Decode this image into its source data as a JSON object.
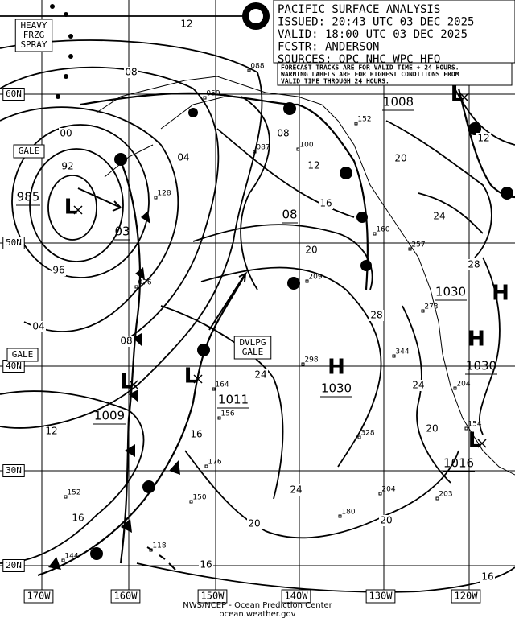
{
  "header": {
    "lines": [
      "PACIFIC SURFACE ANALYSIS",
      "ISSUED: 20:43 UTC 03 DEC 2025",
      "VALID:  18:00 UTC 03 DEC 2025",
      "FCSTR:  ANDERSON",
      "SOURCES: OPC NHC WPC HFO"
    ]
  },
  "note": {
    "lines": [
      "FORECAST TRACKS ARE FOR VALID TIME + 24 HOURS.",
      "WARNING LABELS ARE FOR HIGHEST CONDITIONS FROM",
      "VALID TIME THROUGH 24 HOURS."
    ]
  },
  "lat_labels": [
    "60N",
    "50N",
    "40N",
    "30N",
    "20N"
  ],
  "lon_labels": [
    "170W",
    "160W",
    "150W",
    "140W",
    "130W",
    "120W"
  ],
  "warnings": [
    [
      "HEAVY",
      "FRZG",
      "SPRAY"
    ],
    [
      "GALE"
    ],
    [
      "GALE"
    ],
    [
      "DVLPG",
      "GALE"
    ]
  ],
  "symbols": [
    "L",
    "L",
    "L",
    "L",
    "H",
    "H",
    "H",
    "L"
  ],
  "pressures": [
    "985",
    "03",
    "1009",
    "1011",
    "1030",
    "1030",
    "1030",
    "1008",
    "1016",
    "08"
  ],
  "contour_labels": [
    "12",
    "08",
    "00",
    "92",
    "04",
    "96",
    "04",
    "08",
    "12",
    "16",
    "16",
    "20",
    "24",
    "24",
    "20",
    "16",
    "12",
    "08",
    "20",
    "24",
    "28",
    "24",
    "20",
    "20",
    "16",
    "12",
    "28",
    "16"
  ],
  "station_values": [
    "088",
    "059",
    "087",
    "100",
    "152",
    "128",
    "076",
    "160",
    "257",
    "209",
    "273",
    "298",
    "344",
    "164",
    "156",
    "204",
    "154",
    "176",
    "150",
    "152",
    "144",
    "118",
    "180",
    "204",
    "203",
    "328"
  ],
  "footer": [
    "NWS/NCEP - Ocean Prediction Center",
    "ocean.weather.gov"
  ]
}
